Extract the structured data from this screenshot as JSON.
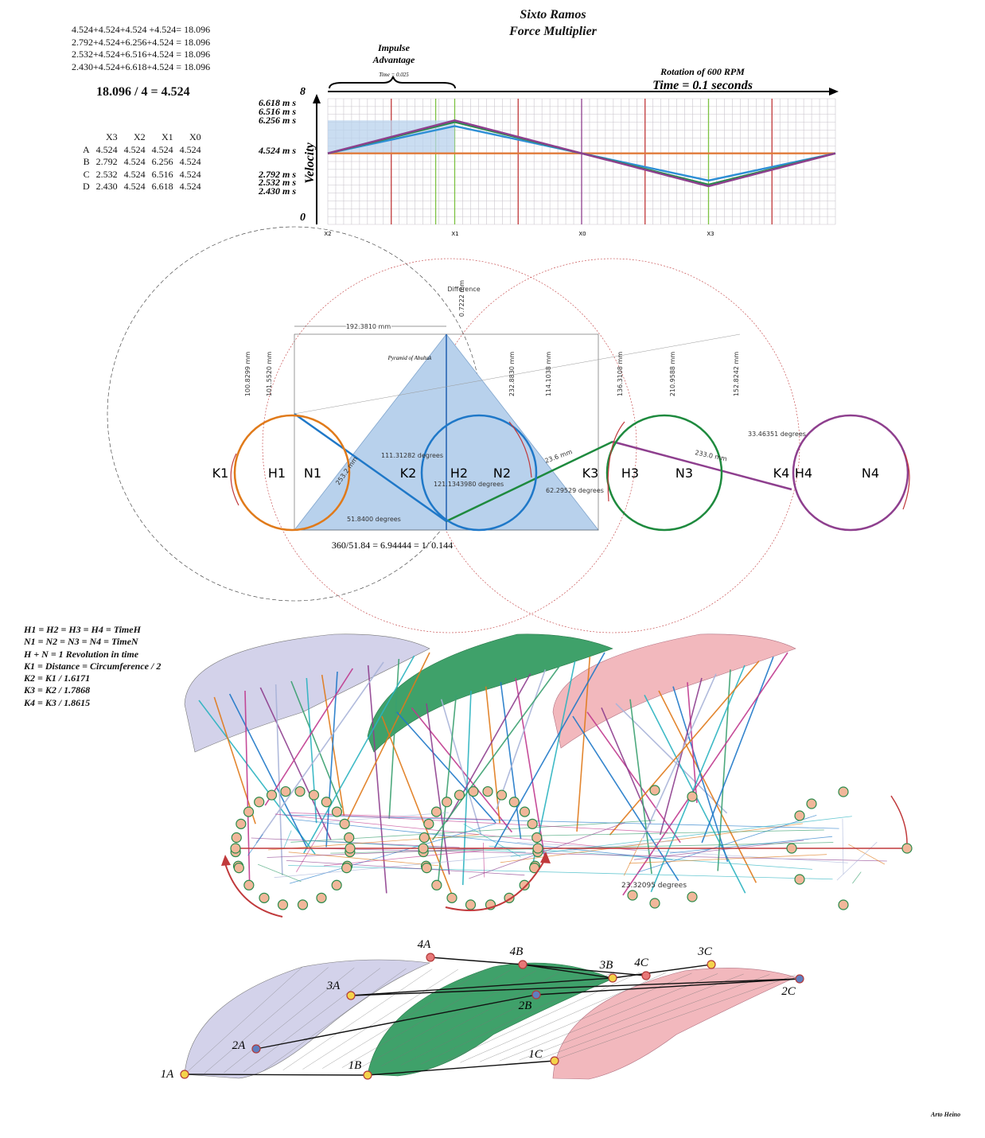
{
  "title": {
    "line1": "Sixto Ramos",
    "line2": "Force Multiplier"
  },
  "equations": [
    "4.524+4.524+4.524 +4.524= 18.096",
    "2.792+4.524+6.256+4.524 = 18.096",
    "2.532+4.524+6.516+4.524 = 18.096",
    "2.430+4.524+6.618+4.524 = 18.096"
  ],
  "average": "18.096 / 4 = 4.524",
  "table": {
    "headers": [
      "",
      "X3",
      "X2",
      "X1",
      "X0"
    ],
    "rows": [
      [
        "A",
        "4.524",
        "4.524",
        "4.524",
        "4.524"
      ],
      [
        "B",
        "2.792",
        "4.524",
        "6.256",
        "4.524"
      ],
      [
        "C",
        "2.532",
        "4.524",
        "6.516",
        "4.524"
      ],
      [
        "D",
        "2.430",
        "4.524",
        "6.618",
        "4.524"
      ]
    ]
  },
  "chart_annotations": {
    "impulse": "Impulse",
    "advantage": "Advantage",
    "impulse_time": "Time = 0.025",
    "rotation": "Rotation of 600 RPM",
    "time": "Time = 0.1 seconds"
  },
  "chart_data": {
    "type": "line",
    "ylabel": "Velocity",
    "ylim": [
      0,
      8
    ],
    "y_ticks": [
      "8",
      "6.618 m s",
      "6.516 m s",
      "6.256 m s",
      "4.524 m s",
      "2.792 m s",
      "2.532 m s",
      "2.430 m s",
      "0"
    ],
    "x_ticks": [
      "X2",
      "X1",
      "X0",
      "X3"
    ],
    "x": [
      0,
      1,
      2,
      3,
      4
    ],
    "series": [
      {
        "color": "#e07a3a",
        "values": [
          4.524,
          4.524,
          4.524,
          4.524,
          4.524
        ]
      },
      {
        "color": "#2e8fd6",
        "values": [
          4.524,
          6.256,
          4.524,
          2.792,
          4.524
        ]
      },
      {
        "color": "#2a8a4a",
        "values": [
          4.524,
          6.516,
          4.524,
          2.532,
          4.524
        ]
      },
      {
        "color": "#8e3f8e",
        "values": [
          4.524,
          6.618,
          4.524,
          2.43,
          4.524
        ]
      }
    ]
  },
  "geometry_labels": {
    "difference": "Difference",
    "pyramid": "Pyramid of Abultak",
    "formula": "360/51.84 = 6.94444 = 1/ 0.144",
    "dims": [
      "192.3810 mm",
      "0.7222 mm",
      "100.8299 mm",
      "101.5520 mm",
      "232.8830 mm",
      "114.1038 mm",
      "136.3108 mm",
      "210.9588 mm",
      "152.8242 mm"
    ],
    "angles": [
      "111.31282 degrees",
      "121.1343980 degrees",
      "62.29529 degrees",
      "51.8400 degrees",
      "33.46351 degrees",
      "233.0 mm",
      "23.6 mm",
      "253.2 mm"
    ],
    "circles": [
      "K1",
      "H1",
      "N1",
      "K2",
      "H2",
      "N2",
      "K3",
      "H3",
      "N3",
      "K4",
      "H4",
      "N4"
    ]
  },
  "definitions": [
    "H1 = H2 = H3 = H4 = TimeH",
    "N1 = N2 = N3 = N4 = TimeN",
    "H + N = 1 Revolution in time",
    "K1 = Distance = Circumference / 2",
    "K2 = K1 / 1.6171",
    "K3 = K2 / 1.7868",
    "K4 = K3 / 1.8615"
  ],
  "mech_label": "23.32095 degrees",
  "points": [
    "1A",
    "2A",
    "3A",
    "4A",
    "1B",
    "2B",
    "3B",
    "4B",
    "1C",
    "2C",
    "3C",
    "4C"
  ],
  "credit": "Arto Heino",
  "colors": {
    "blue_fill": "#b8d1ec",
    "green_fill": "#3fa16a",
    "pink_fill": "#f2b8bd",
    "lilac_fill": "#d3d2ea"
  }
}
